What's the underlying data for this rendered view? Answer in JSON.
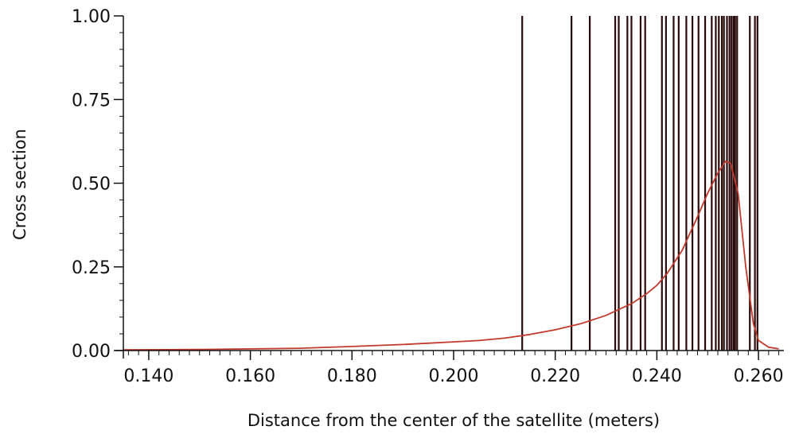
{
  "chart_data": {
    "type": "line",
    "title": "",
    "xlabel": "Distance from the center of the satellite (meters)",
    "ylabel": "Cross section",
    "xlim": [
      0.135,
      0.265
    ],
    "ylim": [
      0,
      1
    ],
    "x_ticks": [
      {
        "value": 0.14,
        "label": "0.140"
      },
      {
        "value": 0.16,
        "label": "0.160"
      },
      {
        "value": 0.18,
        "label": "0.180"
      },
      {
        "value": 0.2,
        "label": "0.200"
      },
      {
        "value": 0.22,
        "label": "0.220"
      },
      {
        "value": 0.24,
        "label": "0.240"
      },
      {
        "value": 0.26,
        "label": "0.260"
      }
    ],
    "y_ticks": [
      {
        "value": 0.0,
        "label": "0.00"
      },
      {
        "value": 0.25,
        "label": "0.25"
      },
      {
        "value": 0.5,
        "label": "0.50"
      },
      {
        "value": 0.75,
        "label": "0.75"
      },
      {
        "value": 1.0,
        "label": "1.00"
      }
    ],
    "grid": false,
    "colors": {
      "curve": "#c0392b",
      "vertical_lines": "#2a0a0a",
      "axis": "#111111"
    },
    "series": [
      {
        "x": [
          0.135,
          0.15,
          0.17,
          0.18,
          0.19,
          0.2,
          0.205,
          0.21,
          0.215,
          0.22,
          0.225,
          0.23,
          0.235,
          0.238,
          0.24,
          0.242,
          0.245,
          0.248,
          0.25,
          0.252,
          0.2535,
          0.2545,
          0.256,
          0.2575,
          0.259,
          0.26,
          0.262,
          0.264
        ],
        "y": [
          0.002,
          0.003,
          0.007,
          0.012,
          0.018,
          0.026,
          0.03,
          0.037,
          0.048,
          0.062,
          0.08,
          0.105,
          0.14,
          0.17,
          0.195,
          0.23,
          0.3,
          0.4,
          0.47,
          0.53,
          0.565,
          0.56,
          0.47,
          0.25,
          0.08,
          0.03,
          0.01,
          0.005
        ]
      }
    ],
    "vertical_lines": [
      0.2135,
      0.2232,
      0.2268,
      0.2318,
      0.2325,
      0.2342,
      0.235,
      0.2368,
      0.2377,
      0.241,
      0.2418,
      0.2433,
      0.2443,
      0.2458,
      0.247,
      0.2482,
      0.2495,
      0.2508,
      0.2516,
      0.2522,
      0.2528,
      0.2532,
      0.2538,
      0.2543,
      0.2547,
      0.2551,
      0.2554,
      0.2558,
      0.2583,
      0.2593,
      0.2598
    ]
  }
}
